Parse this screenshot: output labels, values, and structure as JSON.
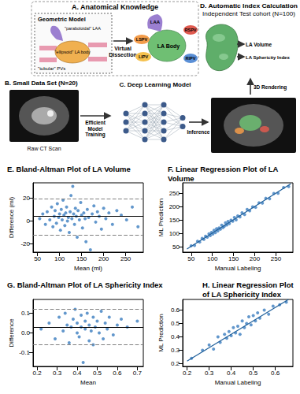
{
  "figure": {
    "panel_a": {
      "title": "A. Anatomical Knowledge",
      "geometric_model": "Geometric Model",
      "model_labels": [
        "\"paraboloidal\" LAA",
        "\"ellipsoid\" LA body",
        "\"tubular\" PVs"
      ],
      "step": "Virtual Dissection",
      "structures": [
        "LAA",
        "LSPV",
        "LIPV",
        "LA Body",
        "RSPV",
        "RIPV"
      ]
    },
    "panel_b": {
      "title": "B. Small Data Set (N=20)",
      "image_label": "Raw CT Scan",
      "step": "Efficient Model Training"
    },
    "panel_c": {
      "title": "C. Deep Learning Model",
      "step": "Inference"
    },
    "panel_d": {
      "title": "D. Automatic Index Calculation",
      "subtitle": "Independent Test cohort (N=100)",
      "outputs": [
        "LA Volume",
        "LA Sphericity Index"
      ],
      "step": "3D Rendering"
    }
  },
  "chart_data": [
    {
      "type": "scatter",
      "title": "E. Bland-Altman Plot of LA Volume",
      "x_label": "Mean (ml)",
      "y_label": "Difference (ml)",
      "xlim": [
        40,
        290
      ],
      "xticks": [
        50,
        100,
        150,
        200,
        250
      ],
      "ylim": [
        -27,
        33
      ],
      "yticks": [
        -20,
        0,
        20
      ],
      "grid": false,
      "color": "#3b7dbf",
      "marker": "circle",
      "x": [
        55,
        62,
        68,
        72,
        78,
        82,
        85,
        88,
        90,
        93,
        95,
        98,
        100,
        102,
        104,
        106,
        108,
        110,
        112,
        114,
        116,
        118,
        120,
        122,
        124,
        126,
        128,
        130,
        132,
        134,
        136,
        138,
        140,
        142,
        145,
        148,
        150,
        152,
        155,
        158,
        160,
        163,
        166,
        170,
        174,
        178,
        182,
        186,
        190,
        195,
        200,
        205,
        212,
        220,
        230,
        240,
        252,
        265,
        278
      ],
      "values": [
        2,
        6,
        -3,
        8,
        1,
        12,
        -5,
        4,
        9,
        -2,
        15,
        3,
        6,
        -8,
        10,
        1,
        18,
        5,
        -4,
        7,
        12,
        0,
        3,
        -10,
        8,
        22,
        2,
        30,
        6,
        -3,
        11,
        4,
        -14,
        9,
        1,
        16,
        5,
        -6,
        7,
        2,
        -18,
        10,
        3,
        -25,
        6,
        13,
        -1,
        8,
        4,
        -7,
        11,
        2,
        7,
        -3,
        9,
        5,
        1,
        12,
        -5
      ],
      "lines": [
        {
          "value": 4,
          "line_style": "solid",
          "color": "#000000"
        },
        {
          "value": 19,
          "line_style": "dashed",
          "color": "#808080"
        },
        {
          "value": -12,
          "line_style": "dashed",
          "color": "#808080"
        }
      ]
    },
    {
      "type": "scatter",
      "title": "F. Linear Regression Plot of LA Volume",
      "x_label": "Manual Labeling",
      "y_label": "ML Prediction",
      "xlim": [
        30,
        290
      ],
      "xticks": [
        50,
        100,
        150,
        200,
        250
      ],
      "ylim": [
        30,
        290
      ],
      "yticks": [
        50,
        100,
        150,
        200,
        250
      ],
      "grid": false,
      "color": "#3b7dbf",
      "marker": "circle",
      "x": [
        50,
        58,
        65,
        70,
        76,
        80,
        84,
        88,
        92,
        95,
        98,
        101,
        104,
        107,
        110,
        113,
        116,
        119,
        122,
        125,
        128,
        131,
        134,
        137,
        140,
        144,
        148,
        152,
        156,
        160,
        165,
        170,
        176,
        182,
        188,
        195,
        202,
        210,
        218,
        226,
        235,
        245,
        255,
        268,
        280
      ],
      "values": [
        54,
        55,
        71,
        68,
        82,
        78,
        90,
        86,
        99,
        92,
        104,
        98,
        112,
        103,
        118,
        110,
        121,
        116,
        131,
        122,
        127,
        140,
        132,
        145,
        137,
        150,
        146,
        160,
        151,
        166,
        162,
        178,
        171,
        190,
        185,
        200,
        198,
        215,
        214,
        232,
        230,
        250,
        251,
        272,
        276
      ],
      "fit_line": {
        "x": [
          40,
          285
        ],
        "values": [
          42,
          286
        ],
        "color": "#1f5f9a"
      }
    },
    {
      "type": "scatter",
      "title": "G. Bland-Altman Plot of LA Sphericity Index",
      "x_label": "Mean",
      "y_label": "Difference",
      "xlim": [
        0.18,
        0.73
      ],
      "xticks": [
        0.2,
        0.3,
        0.4,
        0.5,
        0.6,
        0.7
      ],
      "ylim": [
        -0.17,
        0.17
      ],
      "yticks": [
        -0.1,
        {
          "value": 0,
          "label": "0.0"
        },
        0.1
      ],
      "grid": false,
      "color": "#3b7dbf",
      "marker": "circle",
      "x": [
        0.22,
        0.26,
        0.29,
        0.31,
        0.33,
        0.34,
        0.35,
        0.36,
        0.37,
        0.38,
        0.39,
        0.4,
        0.4,
        0.41,
        0.42,
        0.42,
        0.43,
        0.44,
        0.44,
        0.45,
        0.46,
        0.46,
        0.47,
        0.48,
        0.48,
        0.49,
        0.5,
        0.51,
        0.52,
        0.53,
        0.54,
        0.55,
        0.56,
        0.58,
        0.6,
        0.62,
        0.65,
        0.7
      ],
      "values": [
        0.02,
        0.05,
        -0.03,
        0.08,
        0.01,
        0.1,
        0.04,
        -0.05,
        0.03,
        0.07,
        0.12,
        0,
        0.05,
        -0.02,
        0.09,
        0.03,
        -0.15,
        0.06,
        0.02,
        0.1,
        -0.04,
        0.04,
        0.01,
        0.08,
        -0.06,
        0.03,
        0.06,
        0,
        0.11,
        -0.03,
        0.05,
        0.02,
        0.08,
        -0.01,
        0.04,
        0.07,
        0.03,
        0.06
      ],
      "lines": [
        {
          "value": 0.03,
          "line_style": "solid",
          "color": "#000000"
        },
        {
          "value": 0.115,
          "line_style": "dashed",
          "color": "#808080"
        },
        {
          "value": -0.055,
          "line_style": "dashed",
          "color": "#808080"
        }
      ]
    },
    {
      "type": "scatter",
      "title": "H. Linear Regression Plot of LA Sphericity Index",
      "x_label": "Manual Labeling",
      "y_label": "ML Prediction",
      "xlim": [
        0.18,
        0.68
      ],
      "xticks": [
        0.2,
        0.3,
        0.4,
        0.5,
        0.6
      ],
      "ylim": [
        0.18,
        0.68
      ],
      "yticks": [
        0.2,
        0.3,
        0.4,
        0.5,
        0.6
      ],
      "grid": false,
      "color": "#3b7dbf",
      "marker": "circle",
      "x": [
        0.22,
        0.27,
        0.3,
        0.32,
        0.34,
        0.35,
        0.37,
        0.38,
        0.39,
        0.4,
        0.41,
        0.42,
        0.43,
        0.44,
        0.45,
        0.46,
        0.47,
        0.48,
        0.49,
        0.5,
        0.51,
        0.52,
        0.53,
        0.55,
        0.57,
        0.59,
        0.62,
        0.65
      ],
      "values": [
        0.24,
        0.3,
        0.34,
        0.31,
        0.4,
        0.36,
        0.42,
        0.39,
        0.44,
        0.41,
        0.47,
        0.43,
        0.48,
        0.42,
        0.52,
        0.47,
        0.5,
        0.55,
        0.49,
        0.56,
        0.52,
        0.58,
        0.54,
        0.6,
        0.57,
        0.63,
        0.64,
        0.66
      ],
      "fit_line": {
        "x": [
          0.2,
          0.66
        ],
        "values": [
          0.22,
          0.68
        ],
        "color": "#1f5f9a"
      }
    }
  ]
}
